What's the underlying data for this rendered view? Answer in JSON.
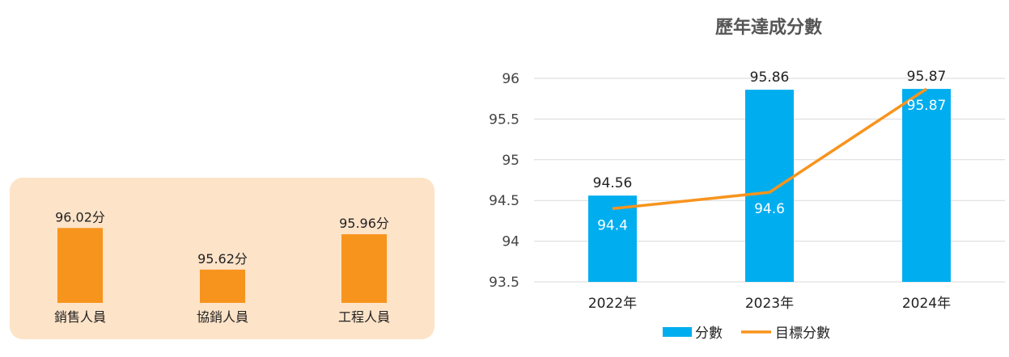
{
  "chart_data": [
    {
      "type": "bar",
      "categories": [
        "銷售人員",
        "協銷人員",
        "工程人員"
      ],
      "values": [
        96.02,
        95.62,
        95.96
      ],
      "data_labels": [
        "96.02分",
        "95.62分",
        "95.96分"
      ],
      "title": "",
      "xlabel": "",
      "ylabel": "",
      "ylim": [
        95.3,
        96.1
      ],
      "grid": false,
      "colors": {
        "bar": "#f7941d",
        "background": "#fde3c8"
      }
    },
    {
      "type": "bar",
      "title": "歷年達成分數",
      "categories": [
        "2022年",
        "2023年",
        "2024年"
      ],
      "series": [
        {
          "name": "分數",
          "type": "bar",
          "values": [
            94.56,
            95.86,
            95.87
          ],
          "color": "#00aeef"
        },
        {
          "name": "目標分數",
          "type": "line",
          "values": [
            94.4,
            94.6,
            95.87
          ],
          "color": "#f7941d"
        }
      ],
      "xlabel": "",
      "ylabel": "",
      "ylim": [
        93.5,
        96
      ],
      "yticks": [
        "93.5",
        "94",
        "94.5",
        "95",
        "95.5",
        "96"
      ],
      "grid": true,
      "legend": "bottom-center"
    }
  ]
}
